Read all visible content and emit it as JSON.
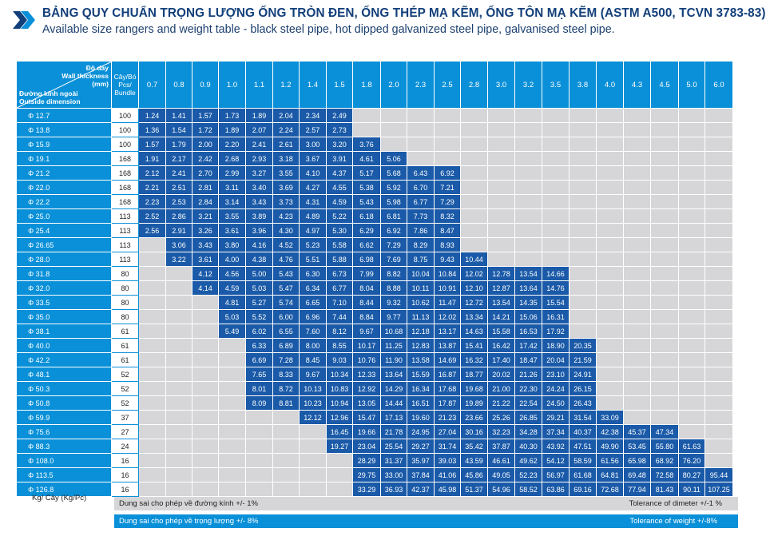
{
  "header": {
    "title": "BẢNG QUY CHUẨN TRỌNG LƯỢNG ỐNG TRÒN ĐEN, ỐNG THÉP MẠ KẼM, ỐNG TÔN MẠ KẼM (ASTM A500, TCVN 3783-83)",
    "subtitle": "Available size rangers and weight table - black steel pipe, hot dipped galvanized steel pipe, galvanised steel pipe.",
    "logo_icon": "chevron-logo-icon"
  },
  "table": {
    "corner_top_lines": [
      "Độ dày",
      "Wall thickness",
      "(mm)"
    ],
    "corner_bottom_lines": [
      "Đường kính ngoài",
      "Outside dimension"
    ],
    "bundle_header": "Cây/Bó Pcs/ Bundle",
    "thickness": [
      "0.7",
      "0.8",
      "0.9",
      "1.0",
      "1.1",
      "1.2",
      "1.4",
      "1.5",
      "1.8",
      "2.0",
      "2.3",
      "2.5",
      "2.8",
      "3.0",
      "3.2",
      "3.5",
      "3.8",
      "4.0",
      "4.3",
      "4.5",
      "5.0",
      "6.0"
    ],
    "rows": [
      {
        "d": "Φ 12.7",
        "pcs": "100",
        "start": 0,
        "v": [
          "1.24",
          "1.41",
          "1.57",
          "1.73",
          "1.89",
          "2.04",
          "2.34",
          "2.49"
        ]
      },
      {
        "d": "Φ 13.8",
        "pcs": "100",
        "start": 0,
        "v": [
          "1.36",
          "1.54",
          "1.72",
          "1.89",
          "2.07",
          "2.24",
          "2.57",
          "2.73"
        ]
      },
      {
        "d": "Φ 15.9",
        "pcs": "100",
        "start": 0,
        "v": [
          "1.57",
          "1.79",
          "2.00",
          "2.20",
          "2.41",
          "2.61",
          "3.00",
          "3.20",
          "3.76"
        ]
      },
      {
        "d": "Φ 19.1",
        "pcs": "168",
        "start": 0,
        "v": [
          "1.91",
          "2.17",
          "2.42",
          "2.68",
          "2.93",
          "3.18",
          "3.67",
          "3.91",
          "4.61",
          "5.06"
        ]
      },
      {
        "d": "Φ 21.2",
        "pcs": "168",
        "start": 0,
        "v": [
          "2.12",
          "2.41",
          "2.70",
          "2.99",
          "3.27",
          "3.55",
          "4.10",
          "4.37",
          "5.17",
          "5.68",
          "6.43",
          "6.92"
        ]
      },
      {
        "d": "Φ 22.0",
        "pcs": "168",
        "start": 0,
        "v": [
          "2.21",
          "2.51",
          "2.81",
          "3.11",
          "3.40",
          "3.69",
          "4.27",
          "4.55",
          "5.38",
          "5.92",
          "6.70",
          "7.21"
        ]
      },
      {
        "d": "Φ 22.2",
        "pcs": "168",
        "start": 0,
        "v": [
          "2.23",
          "2.53",
          "2.84",
          "3.14",
          "3.43",
          "3.73",
          "4.31",
          "4.59",
          "5.43",
          "5.98",
          "6.77",
          "7.29"
        ]
      },
      {
        "d": "Φ 25.0",
        "pcs": "113",
        "start": 0,
        "v": [
          "2.52",
          "2.86",
          "3.21",
          "3.55",
          "3.89",
          "4.23",
          "4.89",
          "5.22",
          "6.18",
          "6.81",
          "7.73",
          "8.32"
        ]
      },
      {
        "d": "Φ 25.4",
        "pcs": "113",
        "start": 0,
        "v": [
          "2.56",
          "2.91",
          "3.26",
          "3.61",
          "3.96",
          "4.30",
          "4.97",
          "5.30",
          "6.29",
          "6.92",
          "7.86",
          "8.47"
        ]
      },
      {
        "d": "Φ 26.65",
        "pcs": "113",
        "start": 1,
        "v": [
          "3.06",
          "3.43",
          "3.80",
          "4.16",
          "4.52",
          "5.23",
          "5.58",
          "6.62",
          "7.29",
          "8.29",
          "8.93"
        ]
      },
      {
        "d": "Φ 28.0",
        "pcs": "113",
        "start": 1,
        "v": [
          "3.22",
          "3.61",
          "4.00",
          "4.38",
          "4.76",
          "5.51",
          "5.88",
          "6.98",
          "7.69",
          "8.75",
          "9.43",
          "10.44"
        ]
      },
      {
        "d": "Φ 31.8",
        "pcs": "80",
        "start": 2,
        "v": [
          "4.12",
          "4.56",
          "5.00",
          "5.43",
          "6.30",
          "6.73",
          "7.99",
          "8.82",
          "10.04",
          "10.84",
          "12.02",
          "12.78",
          "13.54",
          "14.66"
        ]
      },
      {
        "d": "Φ 32.0",
        "pcs": "80",
        "start": 2,
        "v": [
          "4.14",
          "4.59",
          "5.03",
          "5.47",
          "6.34",
          "6.77",
          "8.04",
          "8.88",
          "10.11",
          "10.91",
          "12.10",
          "12.87",
          "13.64",
          "14.76"
        ]
      },
      {
        "d": "Φ 33.5",
        "pcs": "80",
        "start": 3,
        "v": [
          "4.81",
          "5.27",
          "5.74",
          "6.65",
          "7.10",
          "8.44",
          "9.32",
          "10.62",
          "11.47",
          "12.72",
          "13.54",
          "14.35",
          "15.54"
        ]
      },
      {
        "d": "Φ 35.0",
        "pcs": "80",
        "start": 3,
        "v": [
          "5.03",
          "5.52",
          "6.00",
          "6.96",
          "7.44",
          "8.84",
          "9.77",
          "11.13",
          "12.02",
          "13.34",
          "14.21",
          "15.06",
          "16.31"
        ]
      },
      {
        "d": "Φ 38.1",
        "pcs": "61",
        "start": 3,
        "v": [
          "5.49",
          "6.02",
          "6.55",
          "7.60",
          "8.12",
          "9.67",
          "10.68",
          "12.18",
          "13.17",
          "14.63",
          "15.58",
          "16.53",
          "17.92"
        ]
      },
      {
        "d": "Φ 40.0",
        "pcs": "61",
        "start": 4,
        "v": [
          "6.33",
          "6.89",
          "8.00",
          "8.55",
          "10.17",
          "11.25",
          "12.83",
          "13.87",
          "15.41",
          "16.42",
          "17.42",
          "18.90",
          "20.35"
        ]
      },
      {
        "d": "Φ 42.2",
        "pcs": "61",
        "start": 4,
        "v": [
          "6.69",
          "7.28",
          "8.45",
          "9.03",
          "10.76",
          "11.90",
          "13.58",
          "14.69",
          "16.32",
          "17.40",
          "18.47",
          "20.04",
          "21.59"
        ]
      },
      {
        "d": "Φ 48.1",
        "pcs": "52",
        "start": 4,
        "v": [
          "7.65",
          "8.33",
          "9.67",
          "10.34",
          "12.33",
          "13.64",
          "15.59",
          "16.87",
          "18.77",
          "20.02",
          "21.26",
          "23.10",
          "24.91"
        ]
      },
      {
        "d": "Φ 50.3",
        "pcs": "52",
        "start": 4,
        "v": [
          "8.01",
          "8.72",
          "10.13",
          "10.83",
          "12.92",
          "14.29",
          "16.34",
          "17.68",
          "19.68",
          "21.00",
          "22.30",
          "24.24",
          "26.15"
        ]
      },
      {
        "d": "Φ 50.8",
        "pcs": "52",
        "start": 4,
        "v": [
          "8.09",
          "8.81",
          "10.23",
          "10.94",
          "13.05",
          "14.44",
          "16.51",
          "17.87",
          "19.89",
          "21.22",
          "22.54",
          "24.50",
          "26.43"
        ]
      },
      {
        "d": "Φ 59.9",
        "pcs": "37",
        "start": 6,
        "v": [
          "12.12",
          "12.96",
          "15.47",
          "17.13",
          "19.60",
          "21.23",
          "23.66",
          "25.26",
          "26.85",
          "29.21",
          "31.54",
          "33.09"
        ]
      },
      {
        "d": "Φ 75.6",
        "pcs": "27",
        "start": 7,
        "v": [
          "16.45",
          "19.66",
          "21.78",
          "24.95",
          "27.04",
          "30.16",
          "32.23",
          "34.28",
          "37.34",
          "40.37",
          "42.38",
          "45.37",
          "47.34"
        ]
      },
      {
        "d": "Φ 88.3",
        "pcs": "24",
        "start": 7,
        "v": [
          "19.27",
          "23.04",
          "25.54",
          "29.27",
          "31.74",
          "35.42",
          "37.87",
          "40.30",
          "43.92",
          "47.51",
          "49.90",
          "53.45",
          "55.80",
          "61.63"
        ]
      },
      {
        "d": "Φ 108.0",
        "pcs": "16",
        "start": 8,
        "v": [
          "28.29",
          "31.37",
          "35.97",
          "39.03",
          "43.59",
          "46.61",
          "49.62",
          "54.12",
          "58.59",
          "61.56",
          "65.98",
          "68.92",
          "76.20"
        ]
      },
      {
        "d": "Φ 113.5",
        "pcs": "16",
        "start": 8,
        "v": [
          "29.75",
          "33.00",
          "37.84",
          "41.06",
          "45.86",
          "49.05",
          "52.23",
          "56.97",
          "61.68",
          "64.81",
          "69.48",
          "72.58",
          "80.27",
          "95.44"
        ]
      },
      {
        "d": "Φ 126.8",
        "pcs": "16",
        "start": 8,
        "v": [
          "33.29",
          "36.93",
          "42.37",
          "45.98",
          "51.37",
          "54.96",
          "58.52",
          "63.86",
          "69.16",
          "72.68",
          "77.94",
          "81.43",
          "90.11",
          "107.25"
        ]
      }
    ]
  },
  "footer": {
    "unit_note": "Kg/ Cây (Kg/Pc)",
    "tol_diameter_vi": "Dung sai cho phép về đường kính +/- 1%",
    "tol_diameter_en": "Tolerance of dimeter +/-1 %",
    "tol_weight_vi": "Dung sai cho phép về trọng lượng +/- 8%",
    "tol_weight_en": "Tolerance of weight +/-8%"
  }
}
